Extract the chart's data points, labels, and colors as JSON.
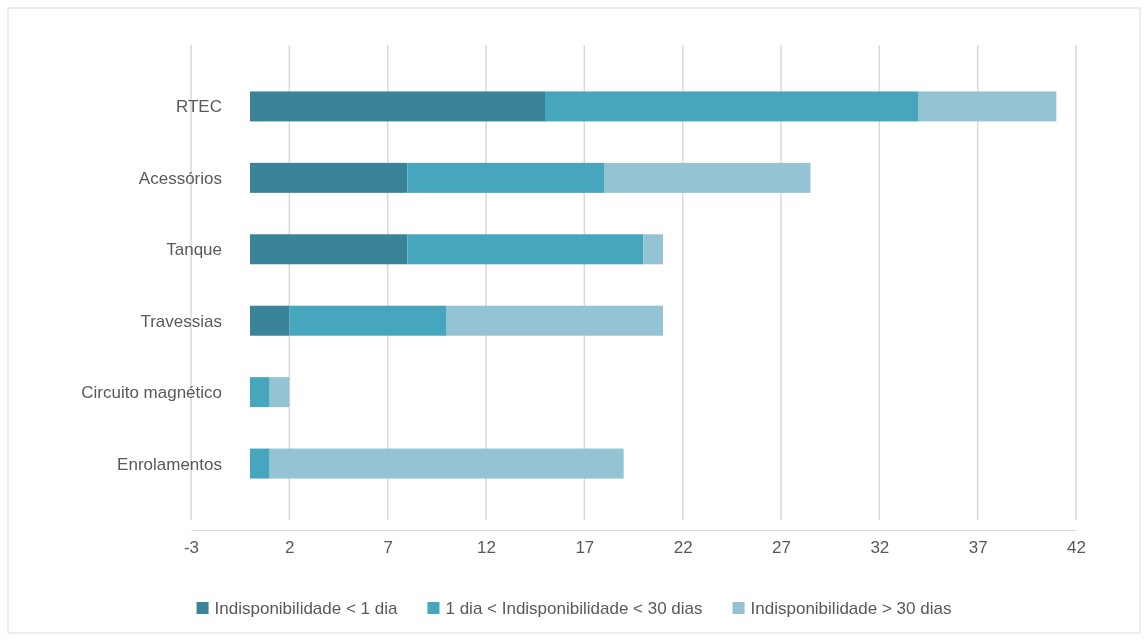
{
  "chart_data": {
    "type": "bar",
    "orientation": "horizontal",
    "stacked": true,
    "categories": [
      "RTEC",
      "Acessórios",
      "Tanque",
      "Travessias",
      "Circuito magnético",
      "Enrolamentos"
    ],
    "series": [
      {
        "name": "Indisponibilidade < 1 dia",
        "color": "#3a8499",
        "values": [
          15,
          8,
          8,
          2,
          0,
          0
        ]
      },
      {
        "name": "1 dia < Indisponibilidade < 30 dias",
        "color": "#45a6bd",
        "values": [
          19,
          10,
          12,
          8,
          1,
          1
        ]
      },
      {
        "name": "Indisponibilidade > 30 dias",
        "color": "#94c4d4",
        "values": [
          7,
          10.5,
          1,
          11,
          1,
          18
        ]
      }
    ],
    "xlim": [
      -3,
      42
    ],
    "xticks": [
      -3,
      2,
      7,
      12,
      17,
      22,
      27,
      32,
      37,
      42
    ],
    "grid": "x",
    "legend": "bottom"
  }
}
